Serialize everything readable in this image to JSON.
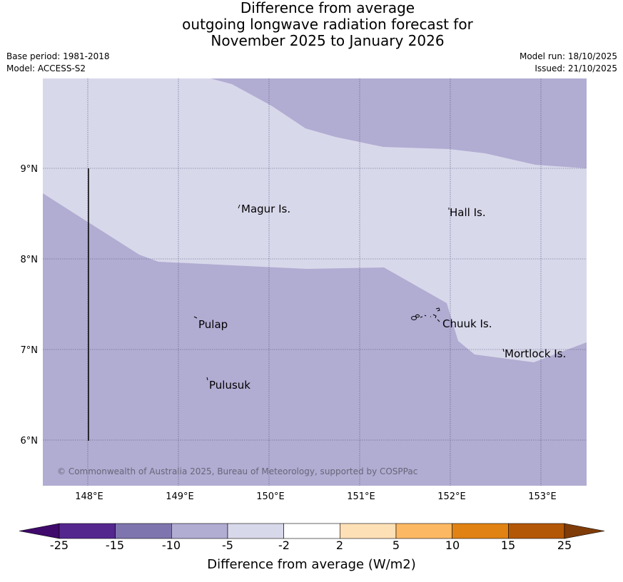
{
  "title": {
    "line1": "Difference from average",
    "line2": "outgoing longwave radiation forecast for",
    "line3": "November 2025 to January 2026"
  },
  "meta": {
    "base_period": "Base period: 1981-2018",
    "model": "Model: ACCESS-S2",
    "model_run": "Model run: 18/10/2025",
    "issued": "Issued: 21/10/2025"
  },
  "map": {
    "lat_labels": [
      "9°N",
      "8°N",
      "7°N",
      "6°N"
    ],
    "lon_labels": [
      "148°E",
      "149°E",
      "150°E",
      "151°E",
      "152°E",
      "153°E"
    ],
    "places": [
      {
        "name": "Magur Is."
      },
      {
        "name": "Hall Is."
      },
      {
        "name": "Pulap"
      },
      {
        "name": "Chuuk Is."
      },
      {
        "name": "Mortlock Is."
      },
      {
        "name": "Pulusuk"
      }
    ],
    "copyright": "© Commonwealth of Australia 2025, Bureau of Meteorology, supported by COSPPac",
    "colors": {
      "light_lavender": "#d8d8eb",
      "mid_lavender": "#b1acd2",
      "grid": "#555577"
    }
  },
  "colorbar": {
    "ticks": [
      "-25",
      "-15",
      "-10",
      "-5",
      "-2",
      "2",
      "5",
      "10",
      "15",
      "25"
    ],
    "colors": [
      "#3f0a6b",
      "#54278f",
      "#7f75ae",
      "#b1acd2",
      "#d8d8eb",
      "#ffffff",
      "#fee0b6",
      "#fdb863",
      "#e08214",
      "#b35806",
      "#7f3b08"
    ],
    "title": "Difference from average (W/m2)"
  }
}
